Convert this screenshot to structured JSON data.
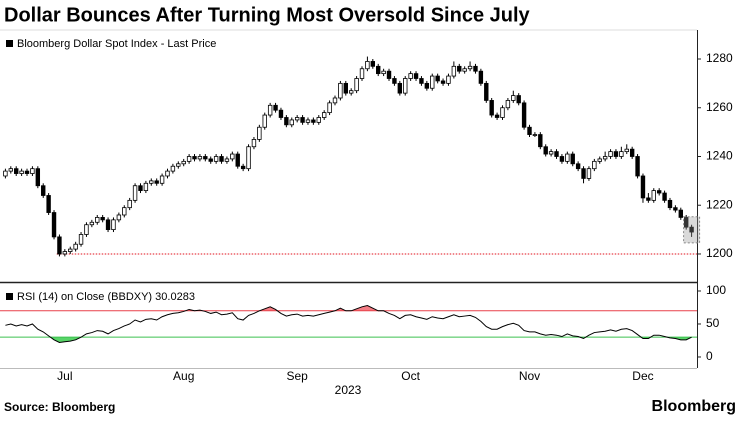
{
  "chart_data": [
    {
      "type": "candlestick",
      "title": "Dollar Bounces After Turning Most Oversold Since July",
      "series_name": "Bloomberg Dollar Spot Index - Last Price",
      "up_color": "#ffffff",
      "down_color": "#000000",
      "edge_color": "#000000",
      "categories": [
        null,
        null,
        null,
        null,
        null,
        null,
        null,
        null,
        null,
        null,
        null,
        null,
        null,
        null,
        null,
        null,
        null,
        null,
        null,
        null,
        null,
        null,
        null,
        null,
        null,
        null,
        null,
        null,
        null,
        null,
        null,
        null,
        null,
        null,
        null,
        null,
        null,
        null,
        null,
        null,
        null,
        null,
        null,
        null,
        null,
        null,
        null,
        null,
        null,
        null,
        null,
        null,
        null,
        null,
        null,
        null,
        null,
        null,
        null,
        null,
        null,
        null,
        null,
        null,
        null,
        null,
        null,
        null,
        null,
        null,
        null,
        null,
        null,
        null,
        null,
        null,
        null,
        null,
        null,
        null,
        null,
        null,
        null,
        null,
        null,
        null,
        null,
        null,
        null,
        null,
        null,
        null,
        null,
        null,
        null,
        null,
        null,
        null,
        null,
        null,
        null,
        null,
        null,
        null,
        null,
        null,
        null,
        null,
        null,
        null,
        null,
        null,
        null,
        null,
        null,
        null,
        null,
        null,
        null,
        null,
        null,
        null,
        null,
        null,
        null,
        null,
        null,
        null
      ],
      "open": [
        1232,
        1234,
        1235,
        1233,
        1234,
        1233,
        1235,
        1228,
        1224,
        1217,
        1207,
        1200,
        1201,
        1202,
        1204,
        1208,
        1212,
        1213,
        1215,
        1214,
        1210,
        1214,
        1216,
        1219,
        1222,
        1228,
        1226,
        1229,
        1230,
        1229,
        1232,
        1234,
        1236,
        1237,
        1238,
        1240,
        1239,
        1240,
        1239,
        1238,
        1240,
        1238,
        1239,
        1241,
        1236,
        1235,
        1244,
        1247,
        1252,
        1257,
        1261,
        1259,
        1256,
        1253,
        1255,
        1256,
        1254,
        1255,
        1254,
        1256,
        1258,
        1262,
        1264,
        1270,
        1266,
        1267,
        1272,
        1276,
        1279,
        1277,
        1274,
        1275,
        1272,
        1270,
        1266,
        1272,
        1274,
        1272,
        1270,
        1268,
        1273,
        1271,
        1270,
        1273,
        1277,
        1275,
        1276,
        1277,
        1275,
        1270,
        1263,
        1257,
        1256,
        1260,
        1263,
        1265,
        1262,
        1252,
        1249,
        1249,
        1244,
        1241,
        1242,
        1240,
        1238,
        1241,
        1237,
        1235,
        1231,
        1235,
        1238,
        1239,
        1240,
        1242,
        1240,
        1242,
        1243,
        1240,
        1232,
        1223,
        1222,
        1226,
        1225,
        1222,
        1219,
        1218,
        1215,
        1211
      ],
      "high": [
        1235,
        1236,
        1236,
        1235,
        1235,
        1236,
        1236,
        1229,
        1225,
        1218,
        1208,
        1202,
        1203,
        1205,
        1209,
        1213,
        1214,
        1216,
        1216,
        1215,
        1215,
        1217,
        1220,
        1223,
        1229,
        1229,
        1230,
        1231,
        1231,
        1233,
        1235,
        1237,
        1238,
        1239,
        1241,
        1241,
        1241,
        1241,
        1240,
        1241,
        1241,
        1240,
        1242,
        1242,
        1237,
        1245,
        1248,
        1253,
        1258,
        1262,
        1262,
        1260,
        1257,
        1256,
        1257,
        1257,
        1256,
        1256,
        1257,
        1259,
        1263,
        1265,
        1271,
        1271,
        1268,
        1273,
        1277,
        1281,
        1280,
        1278,
        1276,
        1276,
        1273,
        1271,
        1273,
        1275,
        1275,
        1273,
        1271,
        1274,
        1274,
        1272,
        1274,
        1279,
        1278,
        1277,
        1279,
        1278,
        1276,
        1271,
        1264,
        1258,
        1261,
        1264,
        1267,
        1266,
        1263,
        1253,
        1250,
        1250,
        1245,
        1243,
        1243,
        1241,
        1242,
        1242,
        1238,
        1236,
        1236,
        1239,
        1240,
        1242,
        1243,
        1243,
        1244,
        1245,
        1244,
        1241,
        1233,
        1225,
        1227,
        1227,
        1226,
        1223,
        1220,
        1219,
        1216,
        1212
      ],
      "low": [
        1231,
        1233,
        1232,
        1232,
        1232,
        1232,
        1227,
        1223,
        1216,
        1206,
        1199,
        1199,
        1200,
        1201,
        1203,
        1207,
        1211,
        1212,
        1213,
        1209,
        1209,
        1213,
        1215,
        1218,
        1221,
        1225,
        1225,
        1228,
        1228,
        1228,
        1231,
        1233,
        1235,
        1236,
        1237,
        1238,
        1238,
        1238,
        1237,
        1237,
        1237,
        1237,
        1238,
        1235,
        1234,
        1234,
        1243,
        1246,
        1251,
        1256,
        1258,
        1255,
        1252,
        1252,
        1254,
        1253,
        1253,
        1253,
        1253,
        1255,
        1257,
        1261,
        1263,
        1265,
        1265,
        1266,
        1271,
        1275,
        1276,
        1273,
        1273,
        1271,
        1269,
        1265,
        1265,
        1271,
        1271,
        1269,
        1267,
        1267,
        1270,
        1269,
        1269,
        1272,
        1274,
        1274,
        1275,
        1274,
        1269,
        1262,
        1256,
        1255,
        1255,
        1259,
        1262,
        1261,
        1251,
        1248,
        1248,
        1243,
        1240,
        1240,
        1239,
        1237,
        1237,
        1236,
        1234,
        1229,
        1230,
        1234,
        1237,
        1238,
        1239,
        1239,
        1239,
        1241,
        1239,
        1231,
        1221,
        1221,
        1221,
        1224,
        1221,
        1218,
        1217,
        1214,
        1210,
        1207
      ],
      "close": [
        1234,
        1235,
        1233,
        1234,
        1233,
        1235,
        1228,
        1224,
        1217,
        1207,
        1200,
        1201,
        1202,
        1204,
        1208,
        1212,
        1213,
        1215,
        1214,
        1210,
        1214,
        1216,
        1219,
        1222,
        1228,
        1226,
        1229,
        1230,
        1229,
        1232,
        1234,
        1236,
        1237,
        1238,
        1240,
        1239,
        1240,
        1239,
        1238,
        1240,
        1238,
        1239,
        1241,
        1236,
        1235,
        1244,
        1247,
        1252,
        1257,
        1261,
        1259,
        1256,
        1253,
        1255,
        1256,
        1254,
        1255,
        1254,
        1256,
        1258,
        1262,
        1264,
        1270,
        1266,
        1267,
        1272,
        1276,
        1279,
        1277,
        1274,
        1275,
        1272,
        1270,
        1266,
        1272,
        1274,
        1272,
        1270,
        1268,
        1273,
        1271,
        1270,
        1273,
        1277,
        1275,
        1276,
        1277,
        1275,
        1270,
        1263,
        1257,
        1256,
        1260,
        1263,
        1265,
        1262,
        1252,
        1249,
        1249,
        1244,
        1241,
        1242,
        1240,
        1238,
        1241,
        1237,
        1235,
        1231,
        1235,
        1238,
        1239,
        1240,
        1242,
        1240,
        1242,
        1243,
        1240,
        1232,
        1223,
        1222,
        1226,
        1225,
        1222,
        1219,
        1218,
        1215,
        1211,
        1209
      ],
      "reference_line": {
        "value": 1200,
        "color": "#e8414a"
      },
      "xlim": [
        -1,
        128
      ],
      "ylim": [
        1188.5,
        1291.9
      ],
      "yticks": [
        1200,
        1220,
        1240,
        1260,
        1280
      ]
    },
    {
      "type": "line",
      "series": [
        {
          "name": "RSI (14)  on Close (BBDXY)",
          "color": "#000000",
          "values": [
            48,
            50,
            47,
            49,
            47,
            50,
            42,
            38,
            32,
            26,
            22,
            23,
            24,
            26,
            30,
            35,
            37,
            40,
            39,
            35,
            40,
            43,
            47,
            50,
            56,
            53,
            57,
            58,
            56,
            61,
            64,
            66,
            67,
            69,
            72,
            70,
            71,
            69,
            66,
            68,
            64,
            65,
            67,
            58,
            56,
            63,
            66,
            70,
            73,
            76,
            72,
            66,
            62,
            64,
            65,
            62,
            63,
            62,
            64,
            66,
            68,
            70,
            74,
            70,
            70,
            73,
            76,
            78,
            74,
            70,
            70,
            66,
            63,
            58,
            63,
            64,
            61,
            59,
            57,
            61,
            59,
            58,
            61,
            64,
            61,
            62,
            63,
            60,
            54,
            46,
            42,
            42,
            46,
            49,
            51,
            48,
            40,
            38,
            38,
            35,
            33,
            34,
            33,
            31,
            35,
            32,
            31,
            28,
            33,
            37,
            38,
            39,
            41,
            39,
            42,
            43,
            40,
            34,
            28,
            28,
            33,
            33,
            31,
            29,
            28,
            26,
            26,
            30.0283
          ]
        }
      ],
      "reference_lines": [
        {
          "value": 70,
          "color": "#e8414a",
          "fill": "#f47c84"
        },
        {
          "value": 30,
          "color": "#3cc04f",
          "fill": "#58d468"
        }
      ],
      "xlim": [
        -1,
        128
      ],
      "ylim": [
        -16.7,
        112.1
      ],
      "yticks": [
        0,
        50,
        100
      ],
      "xticks": [
        {
          "value": 11,
          "label": "Jul"
        },
        {
          "value": 33,
          "label": "Aug"
        },
        {
          "value": 54,
          "label": "Sep"
        },
        {
          "value": 75,
          "label": "Oct"
        },
        {
          "value": 97,
          "label": "Nov"
        },
        {
          "value": 118,
          "label": "Dec"
        }
      ],
      "xlabel": "2023"
    }
  ],
  "source": "Source: Bloomberg",
  "brand": "Bloomberg"
}
